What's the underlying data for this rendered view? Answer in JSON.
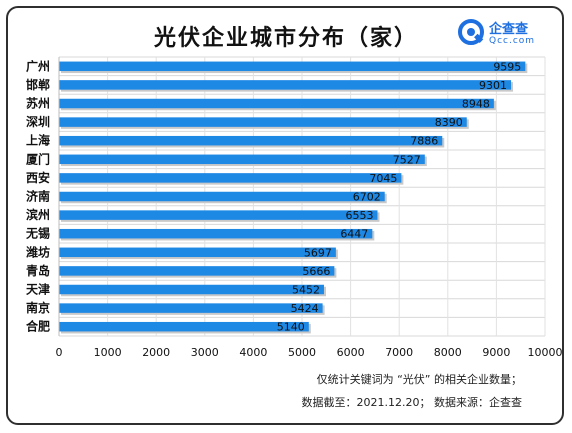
{
  "chart_data": {
    "type": "bar",
    "orientation": "horizontal",
    "title": "光伏企业城市分布（家）",
    "categories": [
      "广州",
      "邯郸",
      "苏州",
      "深圳",
      "上海",
      "厦门",
      "西安",
      "济南",
      "滨州",
      "无锡",
      "潍坊",
      "青岛",
      "天津",
      "南京",
      "合肥"
    ],
    "values": [
      9595,
      9301,
      8948,
      8390,
      7886,
      7527,
      7045,
      6702,
      6553,
      6447,
      5697,
      5666,
      5452,
      5424,
      5140
    ],
    "xlim": [
      0,
      10000
    ],
    "xticks": [
      "0",
      "1000",
      "2000",
      "3000",
      "4000",
      "5000",
      "6000",
      "7000",
      "8000",
      "9000",
      "10000"
    ],
    "grid": true,
    "bar_color": "#1e88e5",
    "shadow_color": "#c9c9c9"
  },
  "logo": {
    "name": "企查查",
    "sub": "Qcc.com",
    "color": "#1e6fe0"
  },
  "footnotes": {
    "line1": "仅统计关键词为 “光伏” 的相关企业数量；",
    "line2_date_label": "数据截至：2021.12.20；",
    "line2_source_label": "数据来源：企查查"
  }
}
